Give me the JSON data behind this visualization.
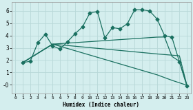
{
  "bg_color": "#d4eeee",
  "line_color": "#1a7060",
  "grid_color": "#b8d8d8",
  "xlabel": "Humidex (Indice chaleur)",
  "xlim": [
    -0.5,
    23.5
  ],
  "ylim": [
    -0.7,
    6.7
  ],
  "xticks": [
    0,
    1,
    2,
    3,
    4,
    5,
    6,
    7,
    8,
    9,
    10,
    11,
    12,
    13,
    14,
    15,
    16,
    17,
    18,
    19,
    20,
    21,
    22,
    23
  ],
  "yticks": [
    0,
    1,
    2,
    3,
    4,
    5,
    6
  ],
  "ytick_labels": [
    "-0",
    "1",
    "2",
    "3",
    "4",
    "5",
    "6"
  ],
  "lines": [
    {
      "x": [
        1,
        2,
        3,
        4,
        5,
        6,
        7,
        8,
        9,
        10,
        11,
        12,
        13,
        14,
        15,
        16,
        17,
        18,
        19,
        20,
        21,
        22,
        23
      ],
      "y": [
        1.8,
        1.9,
        3.4,
        4.1,
        3.15,
        2.9,
        3.5,
        4.15,
        4.7,
        5.85,
        5.95,
        3.8,
        4.65,
        4.55,
        4.95,
        6.1,
        6.1,
        6.0,
        5.35,
        4.0,
        3.85,
        1.85,
        -0.1
      ],
      "marker": "D",
      "markersize": 2.5
    },
    {
      "x": [
        1,
        5,
        19,
        20,
        21,
        22,
        23
      ],
      "y": [
        1.8,
        3.3,
        3.87,
        3.88,
        2.3,
        1.9,
        -0.05
      ],
      "marker": null,
      "markersize": 0
    },
    {
      "x": [
        1,
        5,
        19,
        22,
        23
      ],
      "y": [
        1.8,
        3.3,
        2.5,
        2.35,
        -0.05
      ],
      "marker": null,
      "markersize": 0
    },
    {
      "x": [
        1,
        5,
        19,
        21,
        22,
        23
      ],
      "y": [
        1.8,
        3.3,
        0.8,
        0.35,
        0.15,
        -0.05
      ],
      "marker": null,
      "markersize": 0
    }
  ]
}
